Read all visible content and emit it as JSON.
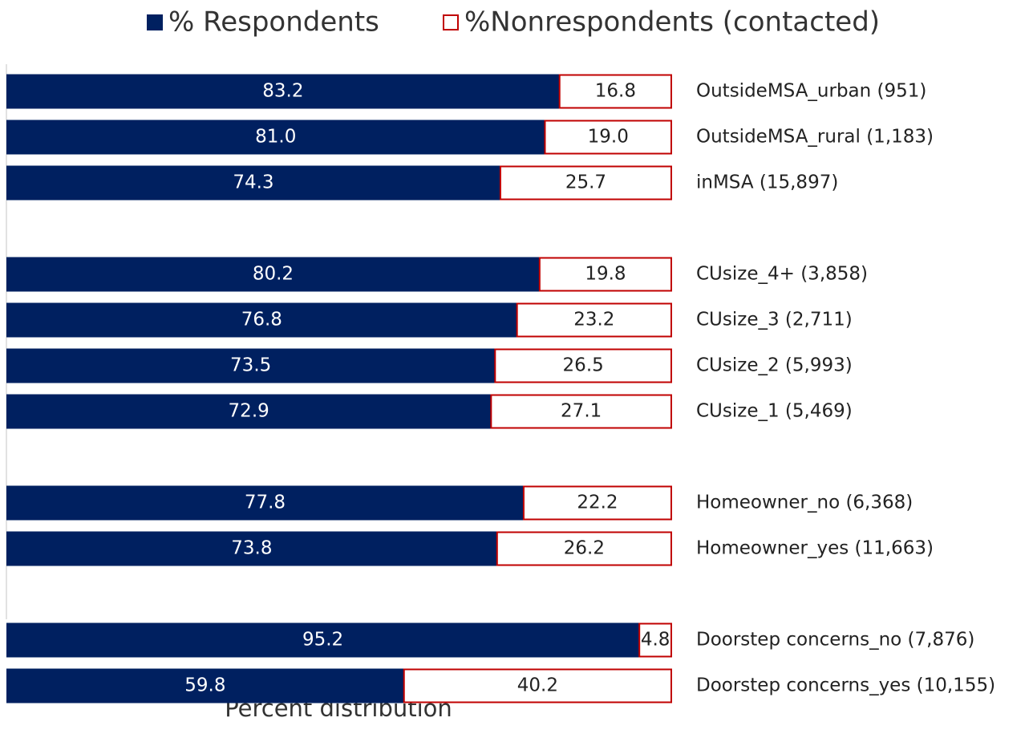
{
  "chart_data": {
    "type": "stacked_barh",
    "xlabel": "Percent distribution",
    "categories": [
      "OutsideMSA_urban (951)",
      "OutsideMSA_rural (1,183)",
      "inMSA (15,897)",
      null,
      "CUsize_4+ (3,858)",
      "CUsize_3 (2,711)",
      "CUsize_2 (5,993)",
      "CUsize_1 (5,469)",
      null,
      "Homeowner_no (6,368)",
      "Homeowner_yes (11,663)",
      null,
      "Doorstep concerns_no (7,876)",
      "Doorstep concerns_yes (10,155)"
    ],
    "series": [
      {
        "name": "% Respondents",
        "color": "#002060",
        "values": [
          83.2,
          81.0,
          74.3,
          null,
          80.2,
          76.8,
          73.5,
          72.9,
          null,
          77.8,
          73.8,
          null,
          95.2,
          59.8
        ],
        "value_labels": [
          "83.2",
          "81.0",
          "74.3",
          null,
          "80.2",
          "76.8",
          "73.5",
          "72.9",
          null,
          "77.8",
          "73.8",
          null,
          "95.2",
          "59.8"
        ]
      },
      {
        "name": "%Nonrespondents (contacted)",
        "color": "#c00000",
        "values": [
          16.8,
          19.0,
          25.7,
          null,
          19.8,
          23.2,
          26.5,
          27.1,
          null,
          22.2,
          26.2,
          null,
          4.8,
          40.2
        ],
        "value_labels": [
          "16.8",
          "19.0",
          "25.7",
          null,
          "19.8",
          "23.2",
          "26.5",
          "27.1",
          null,
          "22.2",
          "26.2",
          null,
          "4.8",
          "40.2"
        ]
      }
    ],
    "xlim": [
      0,
      100
    ],
    "legend": "top"
  }
}
